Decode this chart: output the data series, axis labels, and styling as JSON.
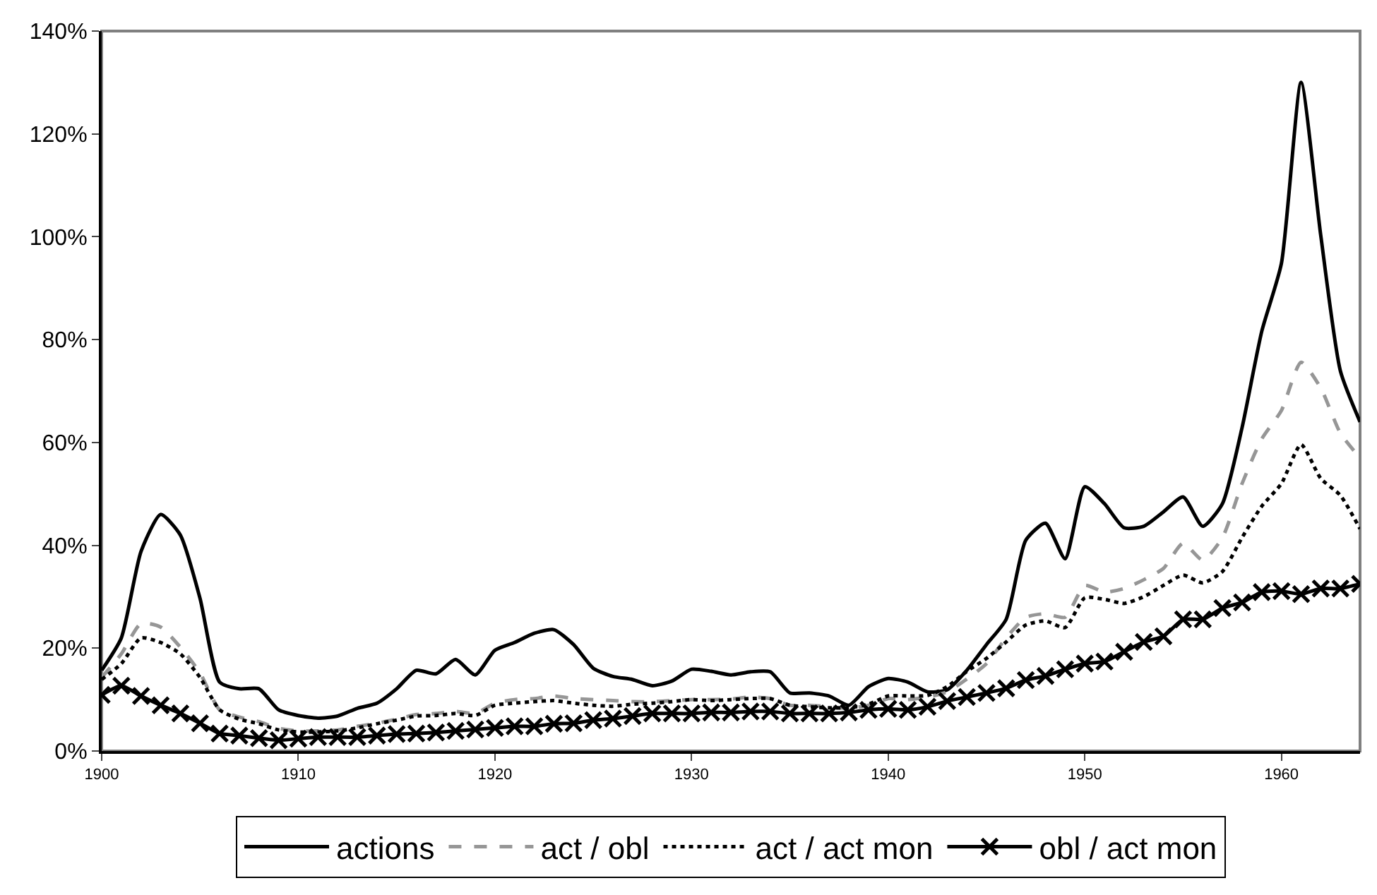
{
  "chart_data": {
    "type": "line",
    "x": [
      1900,
      1901,
      1902,
      1903,
      1904,
      1905,
      1906,
      1907,
      1908,
      1909,
      1910,
      1911,
      1912,
      1913,
      1914,
      1915,
      1916,
      1917,
      1918,
      1919,
      1920,
      1921,
      1922,
      1923,
      1924,
      1925,
      1926,
      1927,
      1928,
      1929,
      1930,
      1931,
      1932,
      1933,
      1934,
      1935,
      1936,
      1937,
      1938,
      1939,
      1940,
      1941,
      1942,
      1943,
      1944,
      1945,
      1946,
      1947,
      1948,
      1949,
      1950,
      1951,
      1952,
      1953,
      1954,
      1955,
      1956,
      1957,
      1958,
      1959,
      1960,
      1961,
      1962,
      1963,
      1964
    ],
    "series": [
      {
        "name": "actions",
        "color": "#000000",
        "line_style": "solid",
        "marker": "none",
        "values": [
          15.7,
          22,
          38.8,
          46,
          42,
          29.7,
          13.4,
          12.1,
          12.1,
          8,
          6.9,
          6.4,
          6.8,
          8.3,
          9.3,
          12.1,
          15.7,
          15,
          17.8,
          14.8,
          19.6,
          21.1,
          22.9,
          23.6,
          20.7,
          16.1,
          14.5,
          13.9,
          12.7,
          13.6,
          15.9,
          15.5,
          14.8,
          15.4,
          15.4,
          11.3,
          11.3,
          10.7,
          8.9,
          12.5,
          14.1,
          13.4,
          11.5,
          11.9,
          15.7,
          20.7,
          25.6,
          41,
          44.3,
          37.4,
          51.4,
          48.1,
          43.4,
          43.7,
          46.5,
          49.4,
          43.7,
          48.1,
          62.9,
          81.6,
          94.8,
          130,
          100.3,
          73.9,
          64
        ]
      },
      {
        "name": "act / obl",
        "color": "#969696",
        "line_style": "dashed",
        "marker": "none",
        "values": [
          14.3,
          18.9,
          24.8,
          24.1,
          20.2,
          15.2,
          8,
          6.6,
          5.7,
          4.4,
          3.9,
          3.9,
          4.1,
          4.8,
          5.4,
          6.2,
          7.1,
          7.3,
          7.7,
          7.3,
          9.3,
          10,
          10.2,
          10.7,
          10.2,
          10,
          9.8,
          9.6,
          9.6,
          9.8,
          10,
          10,
          10.1,
          10.5,
          10.2,
          8.9,
          8.9,
          8.6,
          8.3,
          8.9,
          10.2,
          10,
          10.5,
          11.5,
          14,
          17,
          22,
          26,
          26.7,
          26,
          32.2,
          30.9,
          31.6,
          33.3,
          35.5,
          40.4,
          37.1,
          41.5,
          52,
          60.7,
          66.2,
          75.6,
          70.6,
          61.8,
          57
        ]
      },
      {
        "name": "act / act mon",
        "color": "#000000",
        "line_style": "dotted",
        "marker": "none",
        "values": [
          13.9,
          17,
          22,
          21.1,
          18.9,
          14.3,
          8,
          6.2,
          5.3,
          4.1,
          3.7,
          3.7,
          3.9,
          4.5,
          5.3,
          6,
          6.8,
          6.9,
          7.3,
          6.9,
          8.9,
          9.3,
          9.6,
          9.8,
          9.3,
          8.9,
          8.7,
          9.1,
          9.3,
          9.6,
          10,
          9.8,
          10,
          10.2,
          10.2,
          8.9,
          8.6,
          8.4,
          8.4,
          9.1,
          10.7,
          10.7,
          10.8,
          12.5,
          15.5,
          18,
          21.2,
          24.5,
          25.3,
          24,
          29.8,
          29.5,
          28.7,
          30,
          32.2,
          34.2,
          32.7,
          34.9,
          41.5,
          47.6,
          52,
          59.6,
          53,
          49.7,
          43.2
        ]
      },
      {
        "name": "obl / act mon",
        "color": "#000000",
        "line_style": "solid",
        "marker": "cross",
        "values": [
          10.9,
          12.7,
          10.7,
          8.9,
          7.3,
          5.4,
          3.4,
          3,
          2.5,
          2.1,
          2.4,
          2.7,
          2.7,
          2.7,
          3,
          3.3,
          3.4,
          3.6,
          3.9,
          4.2,
          4.5,
          4.8,
          4.8,
          5.3,
          5.4,
          6,
          6.3,
          6.8,
          7.3,
          7.3,
          7.3,
          7.5,
          7.5,
          7.7,
          7.7,
          7.3,
          7.3,
          7.3,
          7.5,
          8,
          8.2,
          8,
          8.6,
          9.7,
          10.5,
          11.3,
          12.2,
          13.8,
          14.6,
          15.9,
          17,
          17.4,
          19.3,
          21.2,
          22.3,
          25.6,
          25.6,
          27.8,
          28.9,
          30.9,
          31.1,
          30.5,
          31.6,
          31.6,
          32.5
        ]
      }
    ],
    "xlim": [
      1900,
      1964
    ],
    "xticks": [
      1900,
      1910,
      1920,
      1930,
      1940,
      1950,
      1960
    ],
    "ylim": [
      0,
      140
    ],
    "yticks": [
      {
        "value": 0,
        "label": "0%"
      },
      {
        "value": 20,
        "label": "20%"
      },
      {
        "value": 40,
        "label": "40%"
      },
      {
        "value": 60,
        "label": "60%"
      },
      {
        "value": 80,
        "label": "80%"
      },
      {
        "value": 100,
        "label": "100%"
      },
      {
        "value": 120,
        "label": "120%"
      },
      {
        "value": 140,
        "label": "140%"
      }
    ],
    "grid": false,
    "legend": "bottom"
  }
}
